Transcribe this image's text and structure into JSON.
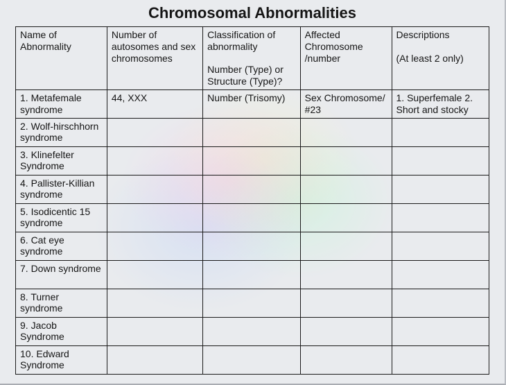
{
  "title": "Chromosomal Abnormalities",
  "headers": {
    "name": "Name of Abnormality",
    "autosomes": "Number of autosomes and sex chromosomes",
    "classification": "Classification of abnormality\n\nNumber (Type) or Structure (Type)?",
    "affected": "Affected Chromosome /number",
    "descriptions": "Descriptions\n\n(At least 2 only)"
  },
  "rows": [
    {
      "name": "1. Metafemale syndrome",
      "autosomes": "44, XXX",
      "classification": "Number (Trisomy)",
      "affected": "Sex Chromosome/ #23",
      "descriptions": "1. Superfemale 2. Short and stocky"
    },
    {
      "name": "2. Wolf-hirschhorn syndrome",
      "autosomes": "",
      "classification": "",
      "affected": "",
      "descriptions": ""
    },
    {
      "name": "3. Klinefelter Syndrome",
      "autosomes": "",
      "classification": "",
      "affected": "",
      "descriptions": ""
    },
    {
      "name": "4. Pallister-Killian syndrome",
      "autosomes": "",
      "classification": "",
      "affected": "",
      "descriptions": ""
    },
    {
      "name": "5. Isodicentic 15 syndrome",
      "autosomes": "",
      "classification": "",
      "affected": "",
      "descriptions": ""
    },
    {
      "name": "6. Cat eye syndrome",
      "autosomes": "",
      "classification": "",
      "affected": "",
      "descriptions": ""
    },
    {
      "name": "7. Down syndrome",
      "autosomes": "",
      "classification": "",
      "affected": "",
      "descriptions": ""
    },
    {
      "name": "8. Turner syndrome",
      "autosomes": "",
      "classification": "",
      "affected": "",
      "descriptions": ""
    },
    {
      "name": "9. Jacob Syndrome",
      "autosomes": "",
      "classification": "",
      "affected": "",
      "descriptions": ""
    },
    {
      "name": "10. Edward Syndrome",
      "autosomes": "",
      "classification": "",
      "affected": "",
      "descriptions": ""
    }
  ]
}
